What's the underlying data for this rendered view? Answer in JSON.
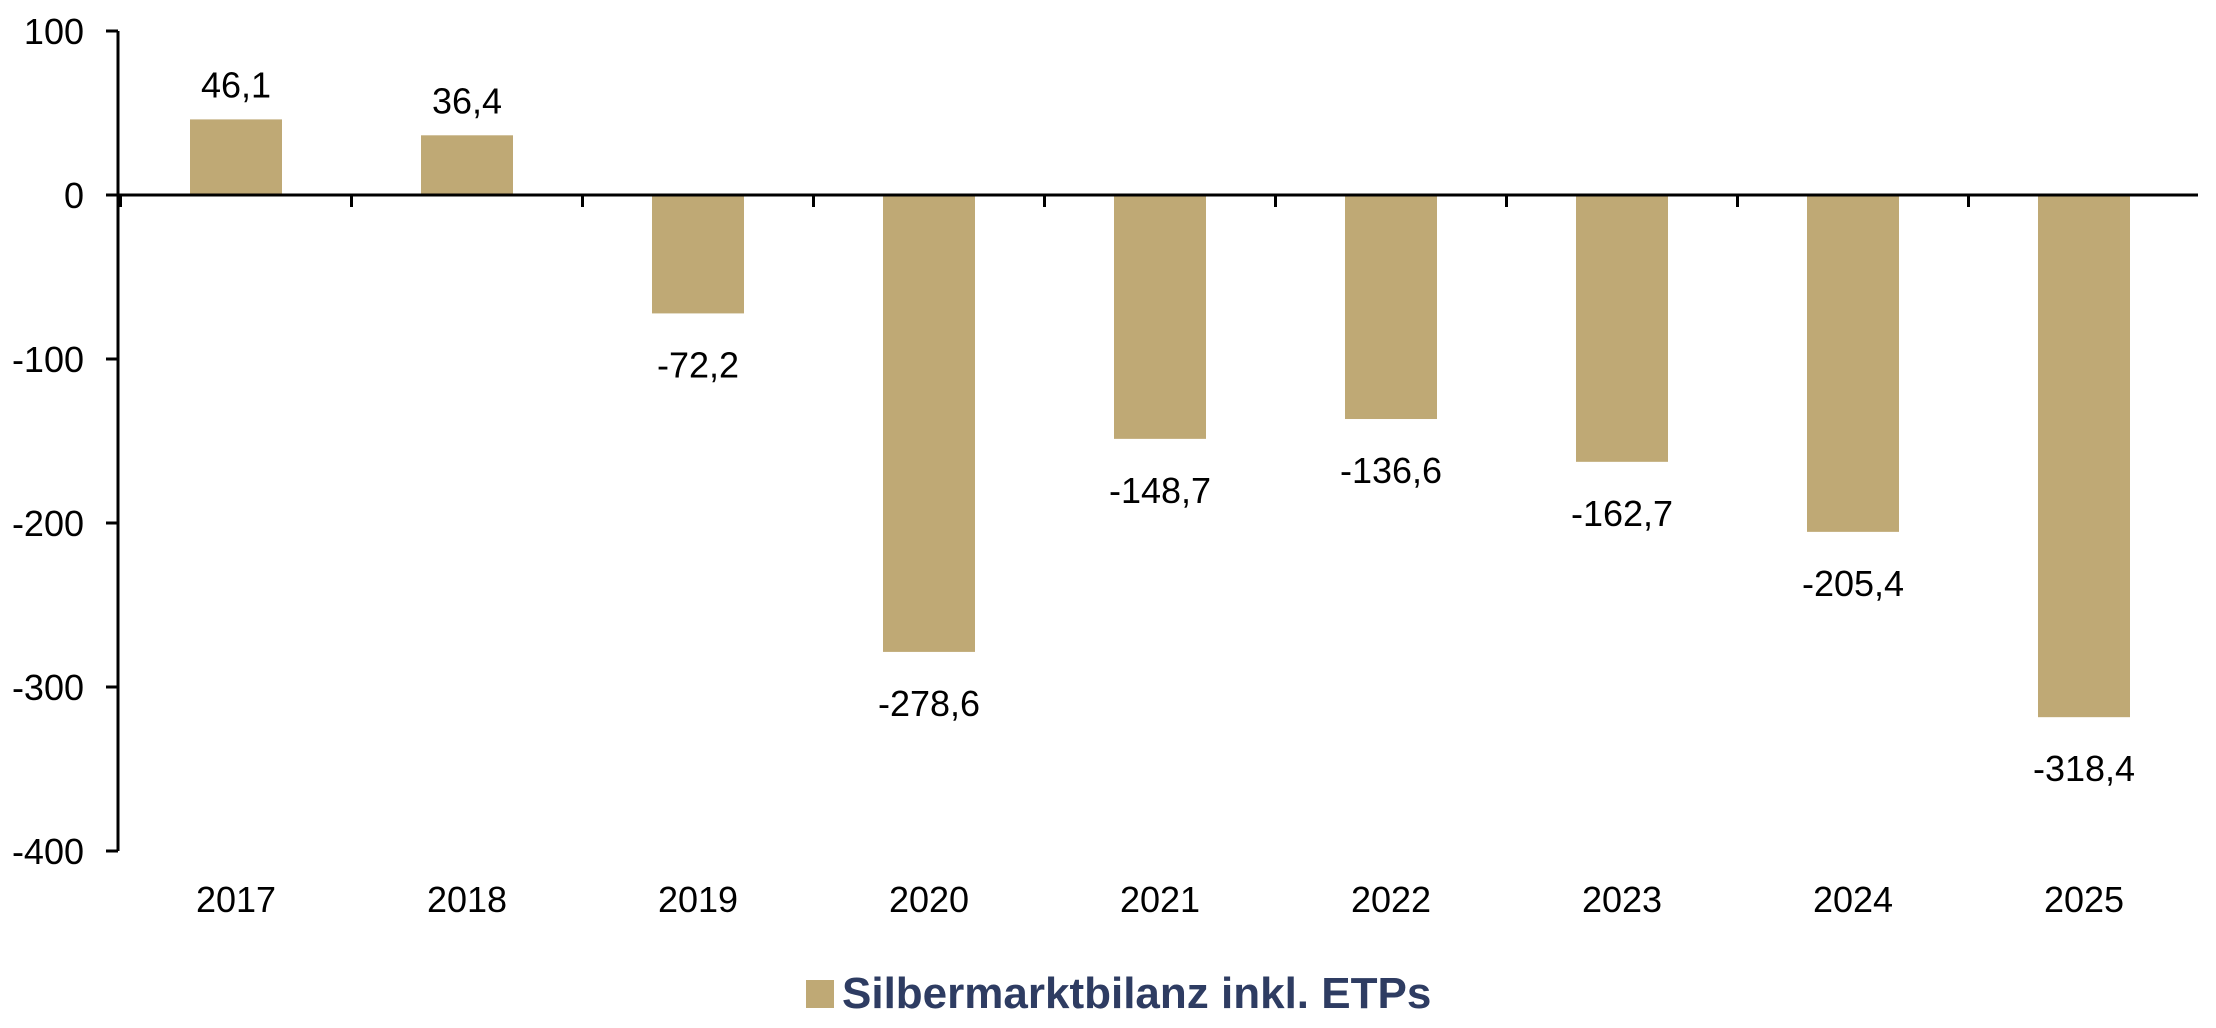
{
  "chart_data": {
    "type": "bar",
    "categories": [
      "2017",
      "2018",
      "2019",
      "2020",
      "2021",
      "2022",
      "2023",
      "2024",
      "2025"
    ],
    "series": [
      {
        "name": "Silbermarktbilanz inkl. ETPs",
        "values": [
          46.1,
          36.4,
          -72.2,
          -278.6,
          -148.7,
          -136.6,
          -162.7,
          -205.4,
          -318.4
        ],
        "labels": [
          "46,1",
          "36,4",
          "-72,2",
          "-278,6",
          "-148,7",
          "-136,6",
          "-162,7",
          "-205,4",
          "-318,4"
        ],
        "color": "#BFA975"
      }
    ],
    "yticks": [
      "100",
      "0",
      "-100",
      "-200",
      "-300",
      "-400"
    ],
    "ylim": [
      -400,
      100
    ],
    "grid": false,
    "legend_position": "bottom-center",
    "legend_text_color": "#2E3C62"
  }
}
